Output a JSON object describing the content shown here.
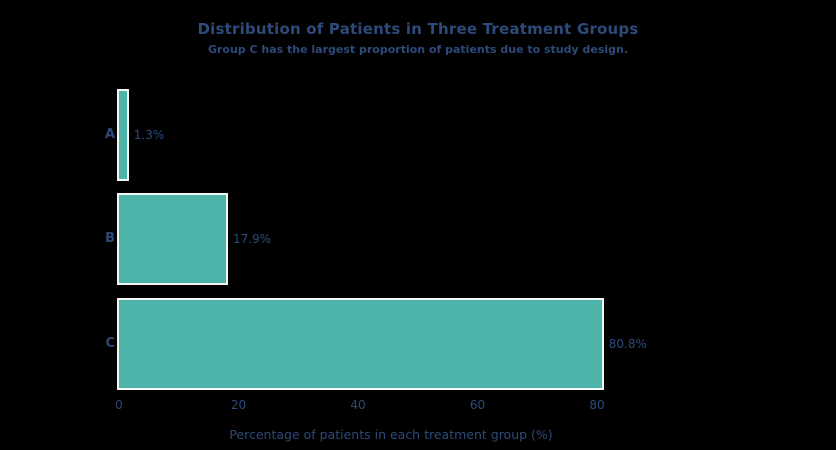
{
  "figure": {
    "background": "#000000"
  },
  "chart_data": {
    "type": "bar",
    "orientation": "horizontal",
    "title": "Distribution of Patients in Three Treatment Groups",
    "subtitle": "Group C has the largest proportion of patients due to study design.",
    "xlabel": "Percentage of patients in each treatment group (%)",
    "ylabel": "",
    "categories": [
      "A",
      "B",
      "C"
    ],
    "values": [
      1.3,
      17.9,
      80.8
    ],
    "value_labels": [
      "1.3%",
      "17.9%",
      "80.8%"
    ],
    "xticks": [
      0,
      20,
      40,
      60,
      80
    ],
    "xlim": [
      0,
      100
    ],
    "grid": false,
    "legend": false,
    "colors": {
      "bar_fill": "#4db4aa",
      "bar_edge": "#f4f6f1",
      "text": "#2d4a7a",
      "background": "#000000"
    }
  }
}
